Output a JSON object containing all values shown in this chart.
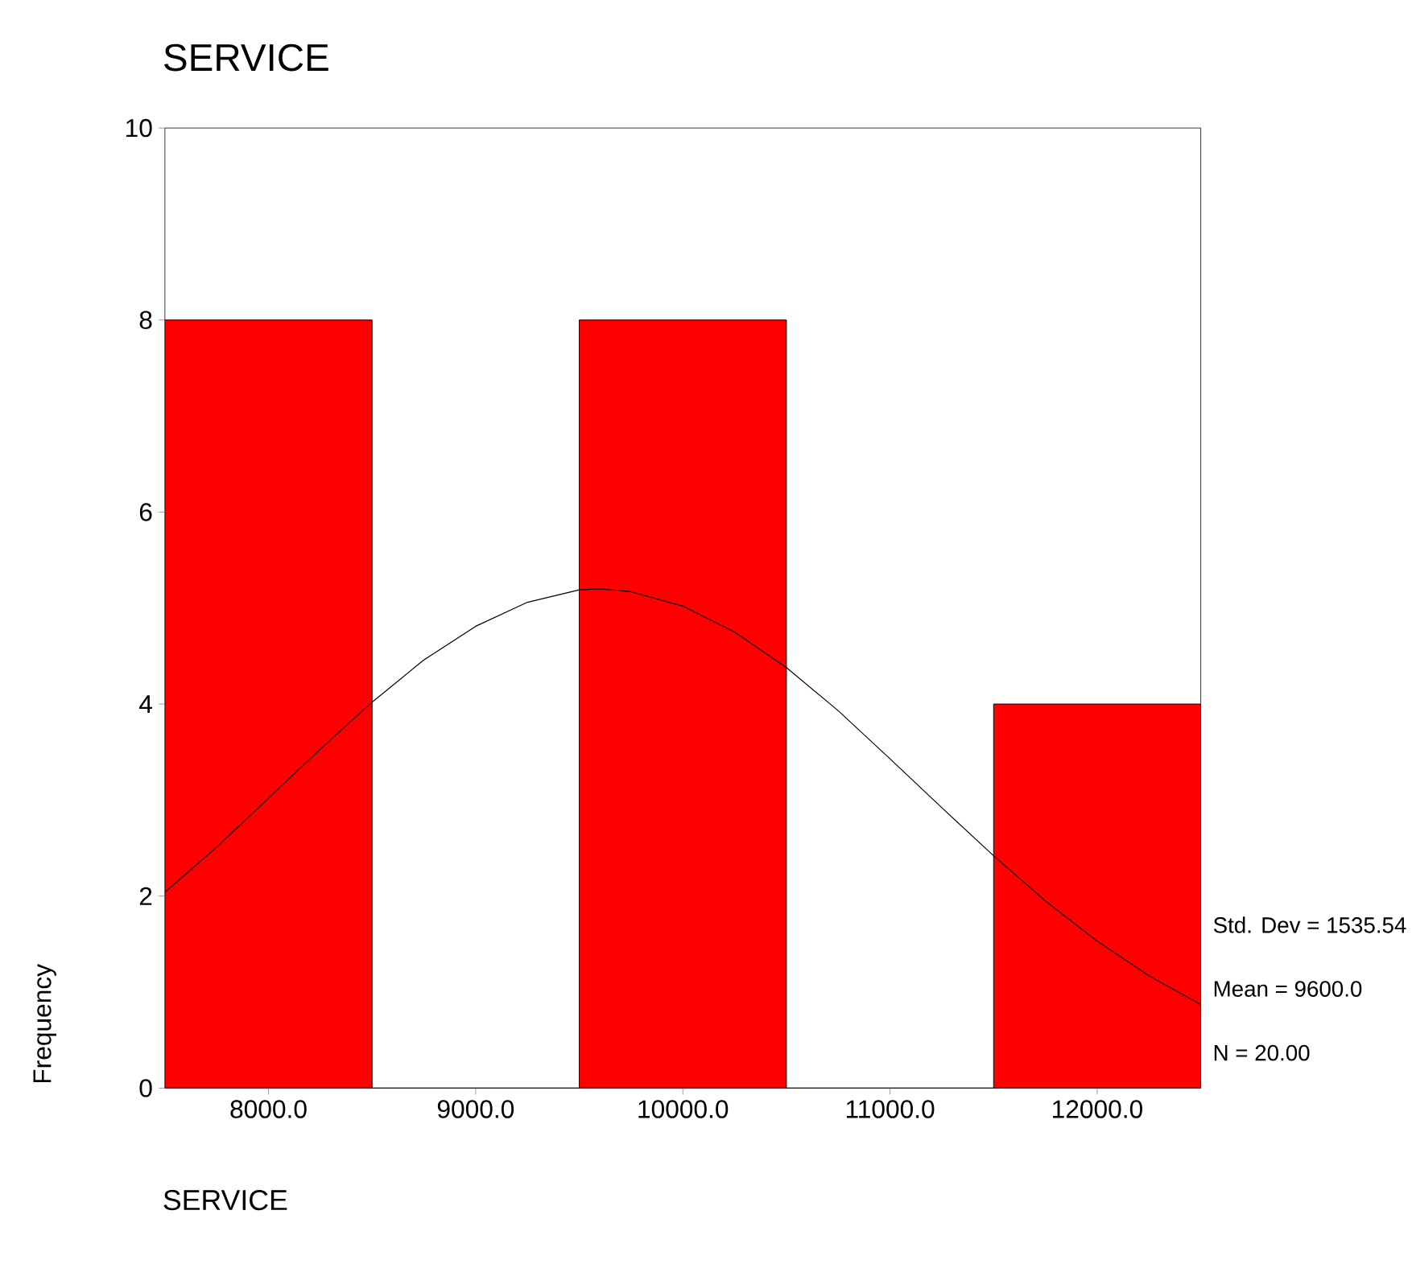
{
  "chart_data": {
    "type": "histogram",
    "title": "SERVICE",
    "xlabel": "SERVICE",
    "ylabel": "Frequency",
    "annotations": [
      "Std. Dev = 1535.54",
      "Mean = 9600.0",
      "N = 20.00"
    ],
    "xlim": [
      7500,
      12500
    ],
    "xticks": [
      {
        "value": 8000,
        "label": "8000.0"
      },
      {
        "value": 9000,
        "label": "9000.0"
      },
      {
        "value": 10000,
        "label": "10000.0"
      },
      {
        "value": 11000,
        "label": "11000.0"
      },
      {
        "value": 12000,
        "label": "12000.0"
      }
    ],
    "ylim": [
      0,
      10
    ],
    "yticks": [
      0,
      2,
      4,
      6,
      8,
      10
    ],
    "series": [
      {
        "color": "#ff0000",
        "bins": [
          7500,
          8500,
          9500,
          10500,
          11500,
          12500
        ],
        "values": [
          8,
          0,
          8,
          0,
          4
        ]
      },
      {
        "type": "line",
        "color": "#000000",
        "x": [
          7500,
          7750,
          8000,
          8250,
          8500,
          8750,
          9000,
          9250,
          9500,
          9600,
          9750,
          10000,
          10250,
          10500,
          10750,
          11000,
          11250,
          11500,
          11750,
          12000,
          12250,
          12500
        ],
        "values": [
          2.04,
          2.51,
          3.02,
          3.53,
          4.02,
          4.46,
          4.81,
          5.06,
          5.19,
          5.2,
          5.17,
          5.02,
          4.75,
          4.38,
          3.93,
          3.43,
          2.92,
          2.42,
          1.95,
          1.53,
          1.17,
          0.87
        ]
      }
    ]
  }
}
